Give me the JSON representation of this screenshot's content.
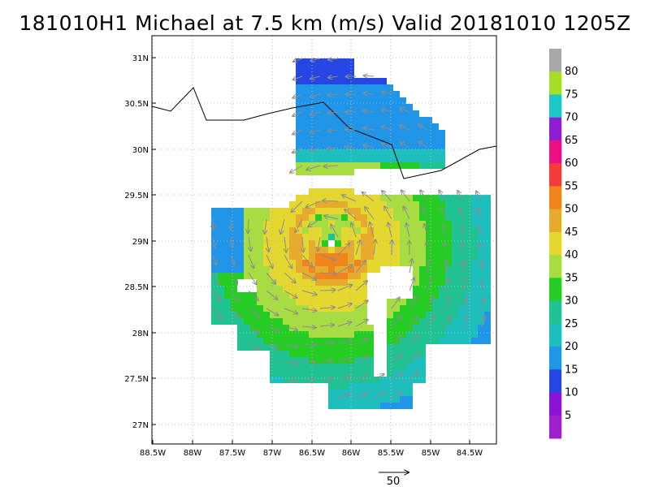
{
  "title": "181010H1 Michael at 7.5 km (m/s) Valid 20181010 1205Z",
  "axes": {
    "x_ticks": [
      "88.5W",
      "88W",
      "87.5W",
      "87W",
      "86.5W",
      "86W",
      "85.5W",
      "85W",
      "84.5W"
    ],
    "y_ticks": [
      "31N",
      "30.5N",
      "30N",
      "29.5N",
      "29N",
      "28.5N",
      "28N",
      "27.5N",
      "27N"
    ]
  },
  "colorbar": {
    "labels": [
      "80",
      "75",
      "70",
      "65",
      "60",
      "55",
      "50",
      "45",
      "40",
      "35",
      "30",
      "25",
      "20",
      "15",
      "10",
      "5"
    ],
    "colors": [
      "#a8a8a8",
      "#a6df2a",
      "#1dc7c7",
      "#8c1fce",
      "#ec0f83",
      "#f23c3c",
      "#f0841e",
      "#e6ab2d",
      "#e4d730",
      "#a7dd43",
      "#24cc24",
      "#21c291",
      "#1ebebd",
      "#2196e8",
      "#2546e3",
      "#8a13d6",
      "#9d1fcd"
    ]
  },
  "reference_vector": {
    "label": "50"
  },
  "storm": {
    "name": "Michael",
    "center_lat": 29.05,
    "center_lon": -86.25
  }
}
